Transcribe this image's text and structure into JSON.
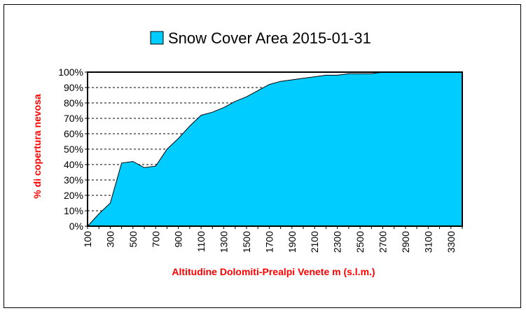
{
  "chart_data": {
    "type": "area",
    "title": "",
    "legend": {
      "placement": "top-center"
    },
    "series": [
      {
        "name": "Snow Cover Area 2015-01-31",
        "color": "#00ccff",
        "values": [
          0,
          8,
          15,
          41,
          42,
          38,
          39,
          50,
          57,
          65,
          72,
          74,
          77,
          81,
          84,
          88,
          92,
          94,
          95,
          96,
          97,
          98,
          98,
          99,
          99,
          99,
          100,
          100,
          100,
          100,
          100,
          100,
          100,
          100
        ]
      }
    ],
    "x": [
      100,
      200,
      300,
      400,
      500,
      600,
      700,
      800,
      900,
      1000,
      1100,
      1200,
      1300,
      1400,
      1500,
      1600,
      1700,
      1800,
      1900,
      2000,
      2100,
      2200,
      2300,
      2400,
      2500,
      2600,
      2700,
      2800,
      2900,
      3000,
      3100,
      3200,
      3300,
      3400
    ],
    "xticks": [
      "100",
      "300",
      "500",
      "700",
      "900",
      "1100",
      "1300",
      "1500",
      "1700",
      "1900",
      "2100",
      "2300",
      "2500",
      "2700",
      "2900",
      "3100",
      "3300"
    ],
    "xlim": [
      100,
      3400
    ],
    "yticks": [
      "0%",
      "10%",
      "20%",
      "30%",
      "40%",
      "50%",
      "60%",
      "70%",
      "80%",
      "90%",
      "100%"
    ],
    "ylim": [
      0,
      100
    ],
    "xlabel": "Altitudine Dolomiti-Prealpi Venete m (s.l.m.)",
    "ylabel": "% di copertura nevosa",
    "label_color": "#ff0000",
    "grid": true
  }
}
